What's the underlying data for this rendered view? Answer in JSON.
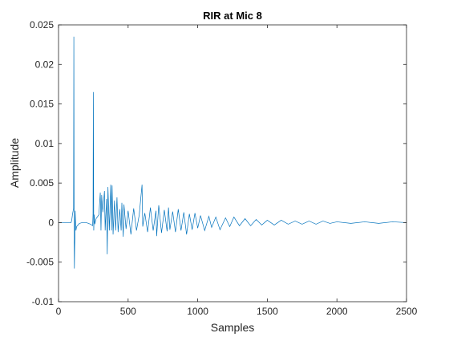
{
  "chart_data": {
    "type": "line",
    "title": "RIR at Mic 8",
    "xlabel": "Samples",
    "ylabel": "Amplitude",
    "xlim": [
      0,
      2500
    ],
    "ylim": [
      -0.01,
      0.025
    ],
    "xticks": [
      0,
      500,
      1000,
      1500,
      2000,
      2500
    ],
    "xtick_labels": [
      "0",
      "500",
      "1000",
      "1500",
      "2000",
      "2500"
    ],
    "yticks": [
      -0.01,
      -0.005,
      0,
      0.005,
      0.01,
      0.015,
      0.02,
      0.025
    ],
    "ytick_labels": [
      "-0.01",
      "-0.005",
      "0",
      "0.005",
      "0.01",
      "0.015",
      "0.02",
      "0.025"
    ],
    "grid": false,
    "legend": "none",
    "series": [
      {
        "color": "#0072BD",
        "x": [
          0,
          60,
          90,
          95,
          100,
          105,
          108,
          110,
          112,
          114,
          116,
          118,
          120,
          125,
          130,
          140,
          150,
          170,
          200,
          230,
          245,
          248,
          250,
          253,
          256,
          260,
          270,
          290,
          300,
          305,
          310,
          318,
          330,
          335,
          345,
          350,
          355,
          365,
          375,
          380,
          385,
          392,
          398,
          402,
          410,
          420,
          428,
          440,
          450,
          455,
          465,
          470,
          485,
          500,
          520,
          540,
          560,
          580,
          600,
          605,
          620,
          640,
          660,
          680,
          700,
          705,
          720,
          740,
          760,
          780,
          790,
          800,
          820,
          840,
          860,
          880,
          900,
          920,
          940,
          960,
          980,
          1000,
          1020,
          1050,
          1080,
          1100,
          1130,
          1160,
          1200,
          1230,
          1260,
          1300,
          1340,
          1380,
          1420,
          1460,
          1500,
          1550,
          1600,
          1650,
          1700,
          1750,
          1800,
          1850,
          1900,
          1950,
          2000,
          2100,
          2200,
          2300,
          2400,
          2500
        ],
        "y": [
          0,
          0,
          0,
          0.0003,
          0.001,
          0.0015,
          0.0018,
          0.0235,
          -0.001,
          -0.0058,
          -0.003,
          -0.0015,
          0.0015,
          -0.001,
          -0.0005,
          -0.0003,
          -0.0001,
          0,
          0,
          -0.0002,
          -0.0004,
          0.001,
          0.0165,
          -0.001,
          0.001,
          -0.0002,
          0.0005,
          0.001,
          0.0038,
          -0.001,
          0.0035,
          0.0013,
          0.004,
          -0.001,
          0.003,
          -0.004,
          0.0045,
          -0.001,
          0.0048,
          -0.001,
          0.0047,
          -0.0015,
          0.001,
          0.0028,
          -0.001,
          0.0032,
          -0.0012,
          0.0017,
          -0.001,
          0.0025,
          -0.0018,
          0.0023,
          -0.0008,
          0.0015,
          -0.0015,
          0.0018,
          -0.001,
          0.001,
          0.0048,
          -0.0005,
          0.0012,
          -0.0012,
          0.0019,
          -0.001,
          0.0015,
          -0.0017,
          0.0022,
          -0.0013,
          0.0016,
          -0.0011,
          0.0019,
          -0.0009,
          0.0014,
          -0.0012,
          0.0017,
          -0.001,
          0.0013,
          -0.0015,
          0.0011,
          -0.0009,
          0.0012,
          -0.0007,
          0.0009,
          -0.001,
          0.0008,
          -0.0006,
          0.0007,
          -0.0009,
          0.0006,
          -0.0005,
          0.0007,
          -0.0004,
          0.0005,
          -0.0004,
          0.0004,
          -0.0003,
          0.0003,
          -0.0003,
          0.0003,
          -0.0002,
          0.0002,
          -0.0002,
          0.0002,
          -0.0002,
          0.0002,
          -0.0001,
          0.0001,
          -0.0001,
          0.0001,
          -0.0001,
          0.0001,
          0
        ]
      }
    ]
  }
}
